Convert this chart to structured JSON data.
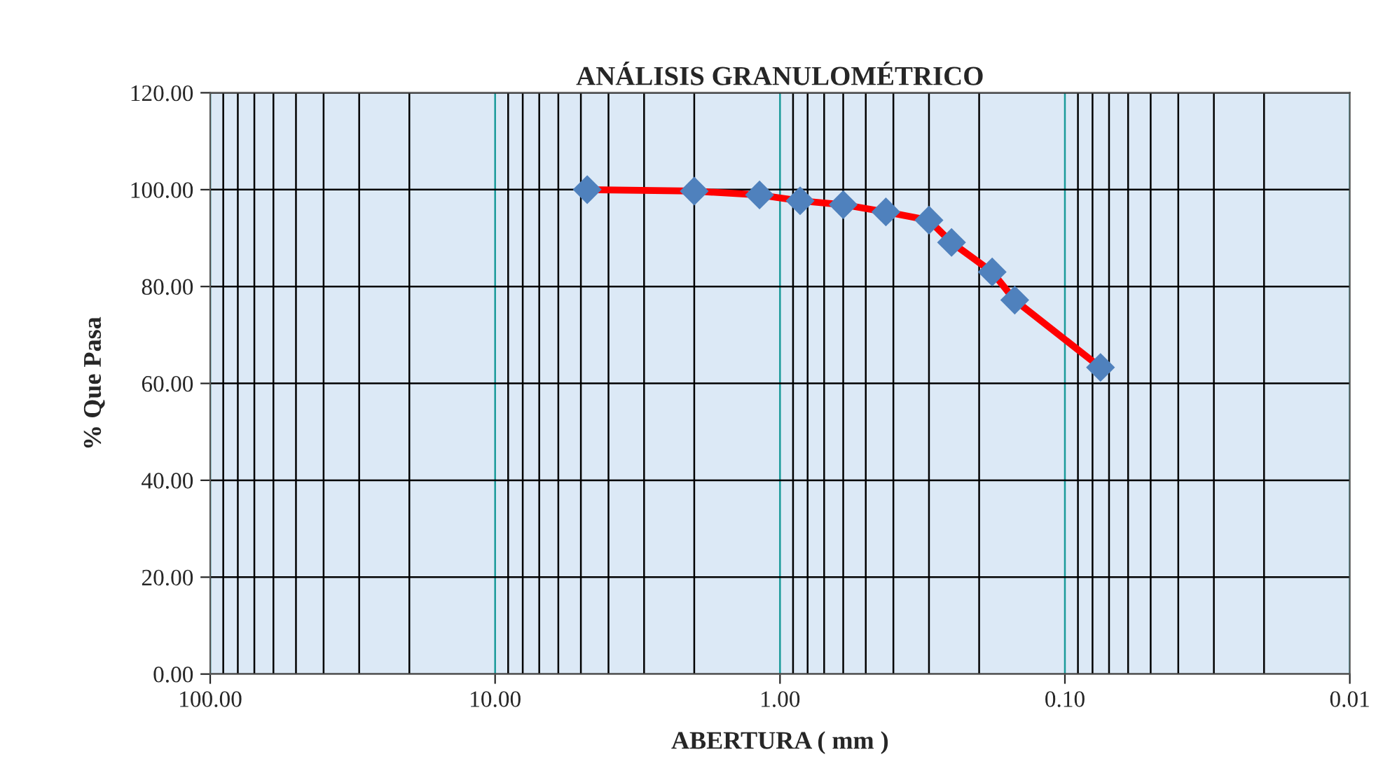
{
  "chart_data": {
    "type": "line",
    "title": "ANÁLISIS GRANULOMÉTRICO",
    "xlabel": "ABERTURA ( mm )",
    "ylabel": "% Que Pasa",
    "log": "x",
    "xlim": [
      100,
      0.01
    ],
    "xticks": [
      {
        "value": 100,
        "label": "100.00"
      },
      {
        "value": 10,
        "label": "10.00"
      },
      {
        "value": 1,
        "label": "1.00"
      },
      {
        "value": 0.1,
        "label": "0.10"
      },
      {
        "value": 0.01,
        "label": "0.01"
      }
    ],
    "ylim": [
      0,
      120
    ],
    "yticks": [
      {
        "value": 0,
        "label": "0.00"
      },
      {
        "value": 20,
        "label": "20.00"
      },
      {
        "value": 40,
        "label": "40.00"
      },
      {
        "value": 60,
        "label": "60.00"
      },
      {
        "value": 80,
        "label": "80.00"
      },
      {
        "value": 100,
        "label": "100.00"
      },
      {
        "value": 120,
        "label": "120.00"
      }
    ],
    "grid": true,
    "marker": "diamond",
    "line_style": "solid",
    "series": [
      {
        "color": "#ff0000",
        "x": [
          4.75,
          2.0,
          1.18,
          0.85,
          0.6,
          0.425,
          0.3,
          0.25,
          0.18,
          0.15,
          0.075
        ],
        "values": [
          100.0,
          99.7,
          98.9,
          97.7,
          96.9,
          95.4,
          93.7,
          89.1,
          83.0,
          77.2,
          63.3
        ]
      }
    ]
  }
}
